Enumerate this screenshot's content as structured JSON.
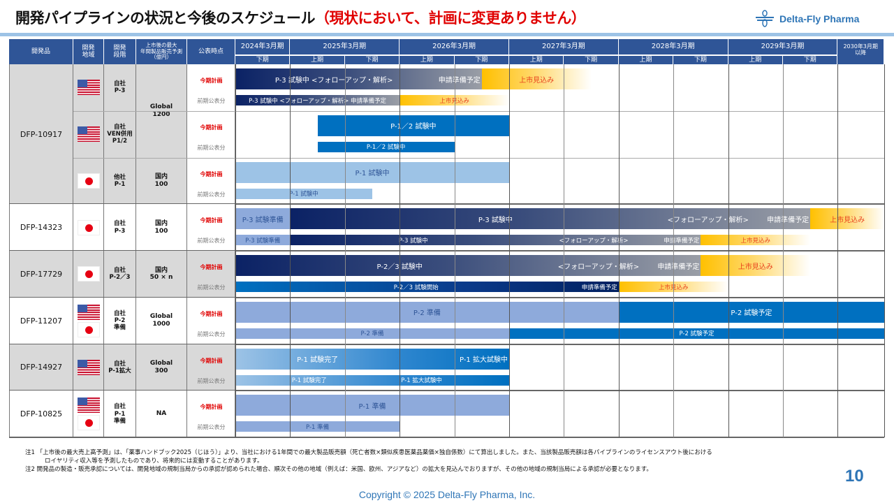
{
  "header": {
    "title": "開発パイプラインの状況と今後のスケジュール",
    "subtitle": "（現状において、計画に変更ありません）",
    "logo_text": "Delta-Fly Pharma"
  },
  "table": {
    "columns": {
      "product": "開発品",
      "region": "開発\n地域",
      "stage": "開発\n段階",
      "forecast": "上市後の最大\n年間製品販売予測\n（億円）",
      "timing": "公表時点"
    },
    "years": [
      "2024年3月期",
      "2025年3月期",
      "2026年3月期",
      "2027年3月期",
      "2028年3月期",
      "2029年3月期",
      "2030年3月期\n以降"
    ],
    "halves": [
      "下期",
      "上期",
      "下期",
      "上期",
      "下期",
      "上期",
      "下期",
      "上期",
      "下期",
      "上期",
      "下期"
    ],
    "plan_label": "今期計画",
    "prev_label": "前期公表分"
  },
  "colors": {
    "header": "#2f5597",
    "plan_label": "#e00000",
    "launch_text": "#e8401c",
    "accent": "#2e75b6"
  },
  "rows": [
    {
      "product": "DFP-10917",
      "shade": true,
      "subrows": [
        {
          "flags": [
            "us"
          ],
          "stage": "自社\nP-3",
          "forecast": "Global\n1200",
          "forecast_rows": 2,
          "plan": [
            {
              "from": 0,
              "to": 4.5,
              "style": "dark",
              "parts": [
                {
                  "to": 3.6,
                  "text": "P-3 試験中 <フォローアップ・解析>"
                },
                {
                  "to": 4.5,
                  "text": "申請準備予定",
                  "align": "right"
                }
              ]
            },
            {
              "from": 4.5,
              "to": 6.5,
              "style": "yellow",
              "parts": [
                {
                  "to": 6.5,
                  "text": "上市見込み"
                }
              ]
            }
          ],
          "prev": [
            {
              "from": 0,
              "to": 3,
              "style": "dark",
              "parts": [
                {
                  "to": 3,
                  "text": "P-3 試験中 <フォローアップ・解析>  申請準備予定"
                }
              ]
            },
            {
              "from": 3,
              "to": 5,
              "style": "yellow",
              "parts": [
                {
                  "to": 5,
                  "text": "上市見込み"
                }
              ]
            }
          ]
        },
        {
          "flags": [
            "us"
          ],
          "stage": "自社\nVEN併用\nP1/2",
          "plan": [
            {
              "from": 1.5,
              "to": 5,
              "style": "blue",
              "parts": [
                {
                  "to": 5,
                  "text": "P-1／2 試験中"
                }
              ]
            }
          ],
          "prev": [
            {
              "from": 1.5,
              "to": 4,
              "style": "blue",
              "parts": [
                {
                  "to": 4,
                  "text": "P-1／2 試験中"
                }
              ]
            }
          ]
        },
        {
          "flags": [
            "jp"
          ],
          "stage": "他社\nP-1",
          "forecast": "国内\n100",
          "forecast_rows": 1,
          "plan": [
            {
              "from": 0,
              "to": 5,
              "style": "sky",
              "parts": [
                {
                  "to": 5,
                  "text": "P-1 試験中"
                }
              ]
            }
          ],
          "prev": [
            {
              "from": 0,
              "to": 2.5,
              "style": "sky",
              "parts": [
                {
                  "to": 2.5,
                  "text": "P-1 試験中"
                }
              ]
            }
          ]
        }
      ]
    },
    {
      "product": "DFP-14323",
      "shade": false,
      "subrows": [
        {
          "flags": [
            "jp"
          ],
          "stage": "自社\nP-3",
          "forecast": "国内\n100",
          "forecast_rows": 1,
          "plan": [
            {
              "from": 0,
              "to": 1,
              "style": "light",
              "parts": [
                {
                  "to": 1,
                  "text": "P-3 試験準備"
                }
              ]
            },
            {
              "from": 1,
              "to": 10.5,
              "style": "dark",
              "parts": [
                {
                  "to": 8.5,
                  "text": "P-3 試験中"
                },
                {
                  "to": 9.4,
                  "text": "<フォローアップ・解析>",
                  "align": "right"
                },
                {
                  "to": 10.5,
                  "text": "申請準備予定",
                  "align": "right"
                }
              ]
            },
            {
              "from": 10.5,
              "to": 11.85,
              "style": "yellow",
              "parts": [
                {
                  "to": 11.85,
                  "text": "上市見込み"
                }
              ]
            }
          ],
          "prev": [
            {
              "from": 0,
              "to": 1,
              "style": "light",
              "parts": [
                {
                  "to": 1,
                  "text": "P-3 試験準備"
                }
              ]
            },
            {
              "from": 1,
              "to": 8.5,
              "style": "dark",
              "parts": [
                {
                  "to": 5.5,
                  "text": "P-3 試験中"
                },
                {
                  "to": 7.2,
                  "text": "<フォローアップ・解析>",
                  "align": "right"
                },
                {
                  "to": 8.5,
                  "text": "申請準備予定",
                  "align": "right"
                }
              ]
            },
            {
              "from": 8.5,
              "to": 10.5,
              "style": "yellow",
              "parts": [
                {
                  "to": 10.5,
                  "text": "上市見込み"
                }
              ]
            }
          ]
        }
      ]
    },
    {
      "product": "DFP-17729",
      "shade": true,
      "subrows": [
        {
          "flags": [
            "jp"
          ],
          "stage": "自社\nP-2／3",
          "forecast": "国内\n50 × n",
          "forecast_rows": 1,
          "plan": [
            {
              "from": 0,
              "to": 8.5,
              "style": "dark",
              "parts": [
                {
                  "to": 6,
                  "text": "P-2／3 試験中"
                },
                {
                  "to": 7.4,
                  "text": "<フォローアップ・解析>",
                  "align": "right"
                },
                {
                  "to": 8.5,
                  "text": "申請準備予定",
                  "align": "right"
                }
              ]
            },
            {
              "from": 8.5,
              "to": 10.5,
              "style": "yellow",
              "parts": [
                {
                  "to": 10.5,
                  "text": "上市見込み"
                }
              ]
            }
          ],
          "prev": [
            {
              "from": 0,
              "to": 7,
              "style": "bluedark",
              "parts": [
                {
                  "to": 6.6,
                  "text": "P-2／3 試験開始"
                },
                {
                  "to": 7,
                  "text": "申請準備予定",
                  "align": "right"
                }
              ]
            },
            {
              "from": 7,
              "to": 9,
              "style": "yellow",
              "parts": [
                {
                  "to": 9,
                  "text": "上市見込み"
                }
              ]
            }
          ]
        }
      ]
    },
    {
      "product": "DFP-11207",
      "shade": false,
      "subrows": [
        {
          "flags": [
            "us",
            "jp"
          ],
          "stage": "自社\nP-2\n準備",
          "forecast": "Global\n1000",
          "forecast_rows": 1,
          "plan": [
            {
              "from": 0,
              "to": 7,
              "style": "light",
              "parts": [
                {
                  "to": 7,
                  "text": "P-2 準備"
                }
              ]
            },
            {
              "from": 7,
              "to": 11.85,
              "style": "blue",
              "parts": [
                {
                  "to": 11.85,
                  "text": "P-2 試験予定"
                }
              ]
            }
          ],
          "prev": [
            {
              "from": 0,
              "to": 5,
              "style": "light",
              "parts": [
                {
                  "to": 5,
                  "text": "P-2 準備"
                }
              ]
            },
            {
              "from": 5,
              "to": 11.85,
              "style": "blue",
              "parts": [
                {
                  "to": 11.85,
                  "text": "P-2 試験予定"
                }
              ]
            }
          ]
        }
      ]
    },
    {
      "product": "DFP-14927",
      "shade": true,
      "subrows": [
        {
          "flags": [
            "us"
          ],
          "stage": "自社\nP-1拡大",
          "forecast": "Global\n300",
          "forecast_rows": 1,
          "plan": [
            {
              "from": 0,
              "to": 5,
              "style": "fade",
              "parts": [
                {
                  "to": 3,
                  "text": "P-1 試験完了"
                },
                {
                  "to": 5,
                  "text": "P-1 拡大試験中",
                  "align": "right"
                }
              ]
            }
          ],
          "prev": [
            {
              "from": 0,
              "to": 5,
              "style": "fade",
              "parts": [
                {
                  "to": 2.7,
                  "text": "P-1 試験完了"
                },
                {
                  "to": 4.1,
                  "text": "P-1 拡大試験中"
                },
                {
                  "to": 5,
                  "text": ""
                }
              ]
            }
          ]
        }
      ]
    },
    {
      "product": "DFP-10825",
      "shade": false,
      "subrows": [
        {
          "flags": [
            "us",
            "jp"
          ],
          "stage": "自社\nP-1\n準備",
          "forecast": "NA",
          "forecast_rows": 1,
          "plan": [
            {
              "from": 0,
              "to": 5,
              "style": "light",
              "parts": [
                {
                  "to": 5,
                  "text": "P-1 準備"
                }
              ]
            }
          ],
          "prev": [
            {
              "from": 0,
              "to": 3,
              "style": "light",
              "parts": [
                {
                  "to": 3,
                  "text": "P-1 準備"
                }
              ]
            }
          ]
        }
      ]
    }
  ],
  "notes": {
    "note1": "注1 「上市後の最大売上高予測」は、「薬事ハンドブック2025（じほう）」より、当社における1年間での最大製品販売額（死亡者数×類似疾患医薬品薬価×独自係数）にて算出しました。また、当該製品販売額は各パイプラインのライセンスアウト後における",
    "note1b": "ロイヤリティ収入等を予測したものであり、将来的には変動することがあります。",
    "note2": "注2  開発品の製造・販売承認については、開発地域の規制当局からの承認が認められた場合、順次その他の地域（例えば：米国、欧州、アジアなど）の拡大を見込んでおりますが、その他の地域の規制当局による承認が必要となります。"
  },
  "page_number": "10",
  "copyright": "Copyright © 2025  Delta-Fly Pharma, Inc."
}
